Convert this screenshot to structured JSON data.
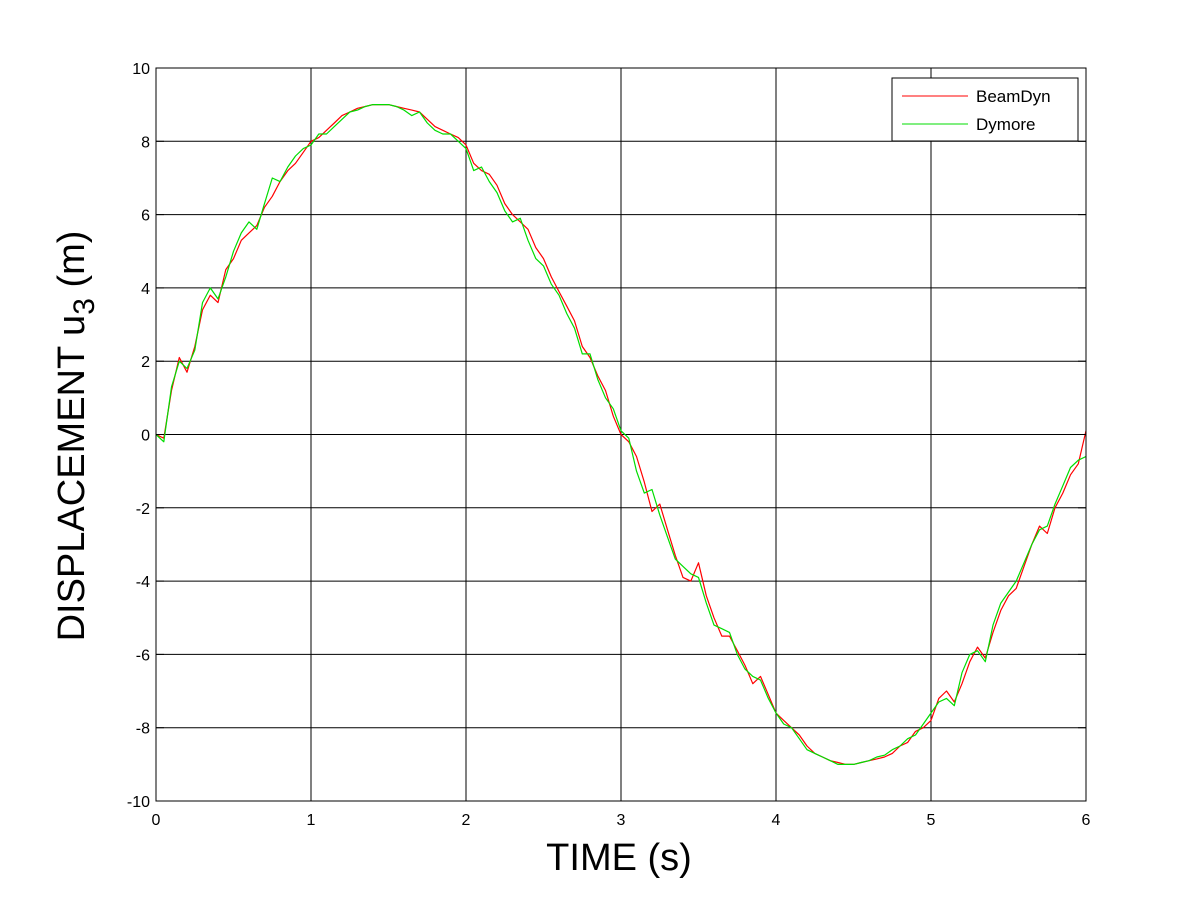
{
  "chart_data": {
    "type": "line",
    "xlabel": "TIME (s)",
    "ylabel_main": "DISPLACEMENT u",
    "ylabel_sub": "3",
    "ylabel_unit": " (m)",
    "xlim": [
      0,
      6
    ],
    "ylim": [
      -10,
      10
    ],
    "xticks": [
      0,
      1,
      2,
      3,
      4,
      5,
      6
    ],
    "yticks": [
      -10,
      -8,
      -6,
      -4,
      -2,
      0,
      2,
      4,
      6,
      8,
      10
    ],
    "grid": true,
    "legend_position": "top-right",
    "series": [
      {
        "name": "BeamDyn",
        "color": "#ff0000",
        "x": [
          0,
          0.05,
          0.1,
          0.15,
          0.2,
          0.25,
          0.3,
          0.35,
          0.4,
          0.45,
          0.5,
          0.55,
          0.6,
          0.65,
          0.7,
          0.75,
          0.8,
          0.85,
          0.9,
          0.95,
          1.0,
          1.05,
          1.1,
          1.15,
          1.2,
          1.25,
          1.3,
          1.35,
          1.4,
          1.45,
          1.5,
          1.55,
          1.6,
          1.65,
          1.7,
          1.75,
          1.8,
          1.85,
          1.9,
          1.95,
          2.0,
          2.05,
          2.1,
          2.15,
          2.2,
          2.25,
          2.3,
          2.35,
          2.4,
          2.45,
          2.5,
          2.55,
          2.6,
          2.65,
          2.7,
          2.75,
          2.8,
          2.85,
          2.9,
          2.95,
          3.0,
          3.05,
          3.1,
          3.15,
          3.2,
          3.25,
          3.3,
          3.35,
          3.4,
          3.45,
          3.5,
          3.55,
          3.6,
          3.65,
          3.7,
          3.75,
          3.8,
          3.85,
          3.9,
          3.95,
          4.0,
          4.05,
          4.1,
          4.15,
          4.2,
          4.25,
          4.3,
          4.35,
          4.4,
          4.45,
          4.5,
          4.55,
          4.6,
          4.65,
          4.7,
          4.75,
          4.8,
          4.85,
          4.9,
          4.95,
          5.0,
          5.05,
          5.1,
          5.15,
          5.2,
          5.25,
          5.3,
          5.35,
          5.4,
          5.45,
          5.5,
          5.55,
          5.6,
          5.65,
          5.7,
          5.75,
          5.8,
          5.85,
          5.9,
          5.95,
          6.0
        ],
        "y": [
          0.0,
          -0.1,
          1.2,
          2.1,
          1.7,
          2.4,
          3.4,
          3.8,
          3.6,
          4.5,
          4.8,
          5.3,
          5.5,
          5.7,
          6.2,
          6.5,
          6.9,
          7.2,
          7.4,
          7.7,
          8.0,
          8.1,
          8.3,
          8.5,
          8.7,
          8.8,
          8.9,
          8.95,
          9.0,
          9.0,
          9.0,
          8.95,
          8.9,
          8.85,
          8.8,
          8.6,
          8.4,
          8.3,
          8.2,
          8.1,
          7.9,
          7.4,
          7.2,
          7.1,
          6.8,
          6.3,
          6.0,
          5.8,
          5.6,
          5.1,
          4.8,
          4.3,
          3.9,
          3.5,
          3.1,
          2.4,
          2.1,
          1.6,
          1.2,
          0.5,
          0.0,
          -0.2,
          -0.6,
          -1.3,
          -2.1,
          -1.9,
          -2.6,
          -3.3,
          -3.9,
          -4.0,
          -3.5,
          -4.4,
          -5.0,
          -5.5,
          -5.5,
          -5.9,
          -6.3,
          -6.8,
          -6.6,
          -7.1,
          -7.6,
          -7.8,
          -8.0,
          -8.2,
          -8.5,
          -8.7,
          -8.8,
          -8.9,
          -8.95,
          -9.0,
          -9.0,
          -8.95,
          -8.9,
          -8.85,
          -8.8,
          -8.7,
          -8.5,
          -8.4,
          -8.1,
          -8.0,
          -7.8,
          -7.2,
          -7.0,
          -7.3,
          -6.8,
          -6.2,
          -5.8,
          -6.1,
          -5.4,
          -4.8,
          -4.4,
          -4.2,
          -3.6,
          -3.0,
          -2.5,
          -2.7,
          -2.0,
          -1.6,
          -1.1,
          -0.8,
          0.1
        ]
      },
      {
        "name": "Dymore",
        "color": "#00dd00",
        "x": [
          0,
          0.05,
          0.1,
          0.15,
          0.2,
          0.25,
          0.3,
          0.35,
          0.4,
          0.45,
          0.5,
          0.55,
          0.6,
          0.65,
          0.7,
          0.75,
          0.8,
          0.85,
          0.9,
          0.95,
          1.0,
          1.05,
          1.1,
          1.15,
          1.2,
          1.25,
          1.3,
          1.35,
          1.4,
          1.45,
          1.5,
          1.55,
          1.6,
          1.65,
          1.7,
          1.75,
          1.8,
          1.85,
          1.9,
          1.95,
          2.0,
          2.05,
          2.1,
          2.15,
          2.2,
          2.25,
          2.3,
          2.35,
          2.4,
          2.45,
          2.5,
          2.55,
          2.6,
          2.65,
          2.7,
          2.75,
          2.8,
          2.85,
          2.9,
          2.95,
          3.0,
          3.05,
          3.1,
          3.15,
          3.2,
          3.25,
          3.3,
          3.35,
          3.4,
          3.45,
          3.5,
          3.55,
          3.6,
          3.65,
          3.7,
          3.75,
          3.8,
          3.85,
          3.9,
          3.95,
          4.0,
          4.05,
          4.1,
          4.15,
          4.2,
          4.25,
          4.3,
          4.35,
          4.4,
          4.45,
          4.5,
          4.55,
          4.6,
          4.65,
          4.7,
          4.75,
          4.8,
          4.85,
          4.9,
          4.95,
          5.0,
          5.05,
          5.1,
          5.15,
          5.2,
          5.25,
          5.3,
          5.35,
          5.4,
          5.45,
          5.5,
          5.55,
          5.6,
          5.65,
          5.7,
          5.75,
          5.8,
          5.85,
          5.9,
          5.95,
          6.0
        ],
        "y": [
          0.0,
          -0.2,
          1.3,
          2.0,
          1.8,
          2.3,
          3.6,
          4.0,
          3.7,
          4.3,
          5.0,
          5.5,
          5.8,
          5.6,
          6.3,
          7.0,
          6.9,
          7.3,
          7.6,
          7.8,
          7.9,
          8.2,
          8.2,
          8.4,
          8.6,
          8.8,
          8.85,
          8.95,
          9.0,
          9.0,
          9.0,
          8.95,
          8.85,
          8.7,
          8.8,
          8.5,
          8.3,
          8.2,
          8.2,
          8.0,
          7.8,
          7.2,
          7.3,
          6.9,
          6.6,
          6.1,
          5.8,
          5.9,
          5.3,
          4.8,
          4.6,
          4.1,
          3.8,
          3.3,
          2.9,
          2.2,
          2.2,
          1.5,
          1.0,
          0.7,
          0.1,
          -0.1,
          -1.0,
          -1.6,
          -1.5,
          -2.2,
          -2.8,
          -3.4,
          -3.6,
          -3.8,
          -3.9,
          -4.6,
          -5.2,
          -5.3,
          -5.4,
          -6.0,
          -6.4,
          -6.6,
          -6.7,
          -7.2,
          -7.6,
          -7.9,
          -8.0,
          -8.3,
          -8.6,
          -8.7,
          -8.8,
          -8.9,
          -9.0,
          -9.0,
          -9.0,
          -8.95,
          -8.9,
          -8.8,
          -8.75,
          -8.6,
          -8.5,
          -8.3,
          -8.2,
          -7.9,
          -7.6,
          -7.3,
          -7.2,
          -7.4,
          -6.5,
          -6.0,
          -5.9,
          -6.2,
          -5.2,
          -4.6,
          -4.3,
          -4.0,
          -3.5,
          -3.0,
          -2.6,
          -2.5,
          -1.9,
          -1.4,
          -0.9,
          -0.7,
          -0.6
        ]
      }
    ]
  }
}
